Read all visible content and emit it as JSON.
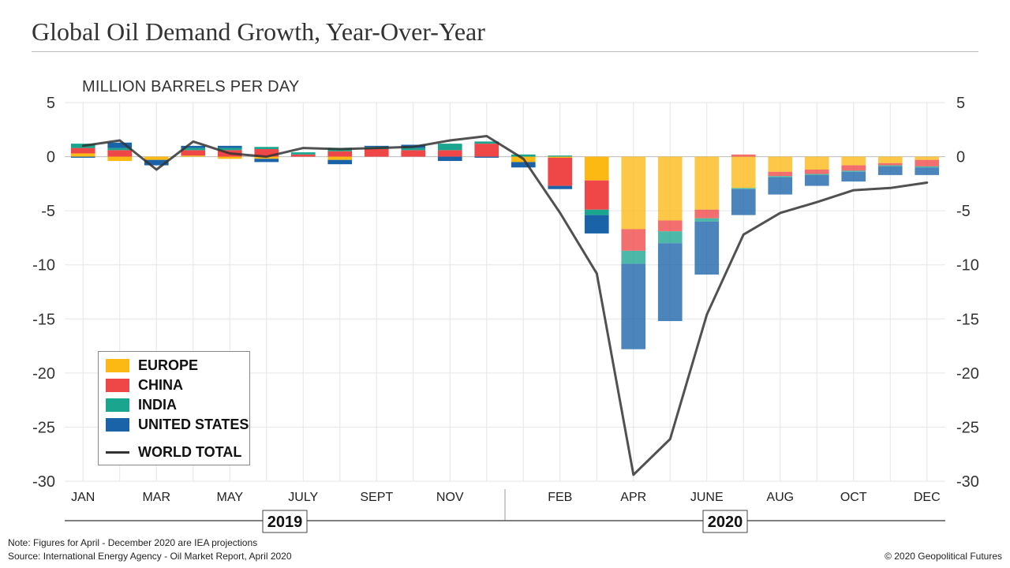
{
  "header": {
    "title": "Global Oil Demand Growth, Year-Over-Year",
    "unit_label": "MILLION BARRELS PER DAY"
  },
  "footer": {
    "note": "Note: Figures for April - December 2020 are IEA projections",
    "source": "Source: International Energy Agency - Oil Market Report, April 2020",
    "credit": "© 2020 Geopolitical Futures"
  },
  "chart_data": {
    "type": "bar",
    "stacked": true,
    "ylim": [
      -30,
      5
    ],
    "yticks": [
      5,
      0,
      -5,
      -10,
      -15,
      -20,
      -25,
      -30
    ],
    "grid": true,
    "legend_position": "bottom-left",
    "x": [
      "Jan 2019",
      "Feb 2019",
      "Mar 2019",
      "Apr 2019",
      "May 2019",
      "Jun 2019",
      "Jul 2019",
      "Aug 2019",
      "Sep 2019",
      "Oct 2019",
      "Nov 2019",
      "Dec 2019",
      "Jan 2020",
      "Feb 2020",
      "Mar 2020",
      "Apr 2020",
      "May 2020",
      "Jun 2020",
      "Jul 2020",
      "Aug 2020",
      "Sep 2020",
      "Oct 2020",
      "Nov 2020",
      "Dec 2020"
    ],
    "x_tick_labels": [
      "JAN",
      "",
      "MAR",
      "",
      "MAY",
      "",
      "JULY",
      "",
      "SEPT",
      "",
      "NOV",
      "",
      "",
      "FEB",
      "",
      "APR",
      "",
      "JUNE",
      "",
      "AUG",
      "",
      "OCT",
      "",
      "DEC"
    ],
    "year_groups": [
      {
        "label": "2019",
        "start": 0,
        "end": 11
      },
      {
        "label": "2020",
        "start": 12,
        "end": 23
      }
    ],
    "series": [
      {
        "name": "EUROPE",
        "color": "#FDB913",
        "values": [
          0.3,
          -0.4,
          -0.3,
          0.1,
          -0.2,
          -0.2,
          0.0,
          -0.3,
          0.0,
          0.0,
          0.0,
          0.0,
          -0.5,
          -0.1,
          -2.2,
          -6.7,
          -5.9,
          -4.9,
          -2.9,
          -1.4,
          -1.2,
          -0.8,
          -0.6,
          -0.3
        ]
      },
      {
        "name": "CHINA",
        "color": "#EF4747",
        "values": [
          0.5,
          0.6,
          0.0,
          0.5,
          0.6,
          0.7,
          0.2,
          0.5,
          0.7,
          0.6,
          0.6,
          1.2,
          0.0,
          -2.6,
          -2.7,
          -2.0,
          -1.0,
          -0.8,
          0.2,
          -0.4,
          -0.4,
          -0.5,
          -0.2,
          -0.6
        ]
      },
      {
        "name": "INDIA",
        "color": "#1AA58F",
        "values": [
          0.4,
          0.2,
          0.0,
          0.2,
          0.2,
          0.2,
          0.2,
          0.3,
          0.2,
          0.2,
          0.6,
          0.2,
          0.2,
          0.1,
          -0.5,
          -1.2,
          -1.1,
          -0.3,
          -0.1,
          -0.1,
          -0.1,
          -0.1,
          -0.1,
          -0.1
        ]
      },
      {
        "name": "UNITED STATES",
        "color": "#1A63A8",
        "values": [
          -0.1,
          0.5,
          -0.5,
          0.2,
          0.2,
          -0.3,
          0.0,
          -0.4,
          0.1,
          0.3,
          -0.4,
          -0.1,
          -0.5,
          -0.3,
          -1.7,
          -7.9,
          -7.2,
          -4.9,
          -2.4,
          -1.6,
          -1.0,
          -0.9,
          -0.8,
          -0.7
        ]
      },
      {
        "name": "WORLD TOTAL",
        "type": "line",
        "color": "#333333",
        "values": [
          1.0,
          1.5,
          -1.2,
          1.4,
          0.3,
          0.0,
          0.8,
          0.7,
          0.8,
          0.9,
          1.5,
          1.9,
          -0.2,
          -5.2,
          -10.8,
          -29.4,
          -26.1,
          -14.6,
          -7.2,
          -5.2,
          -4.2,
          -3.1,
          -2.9,
          -2.4
        ]
      }
    ]
  }
}
